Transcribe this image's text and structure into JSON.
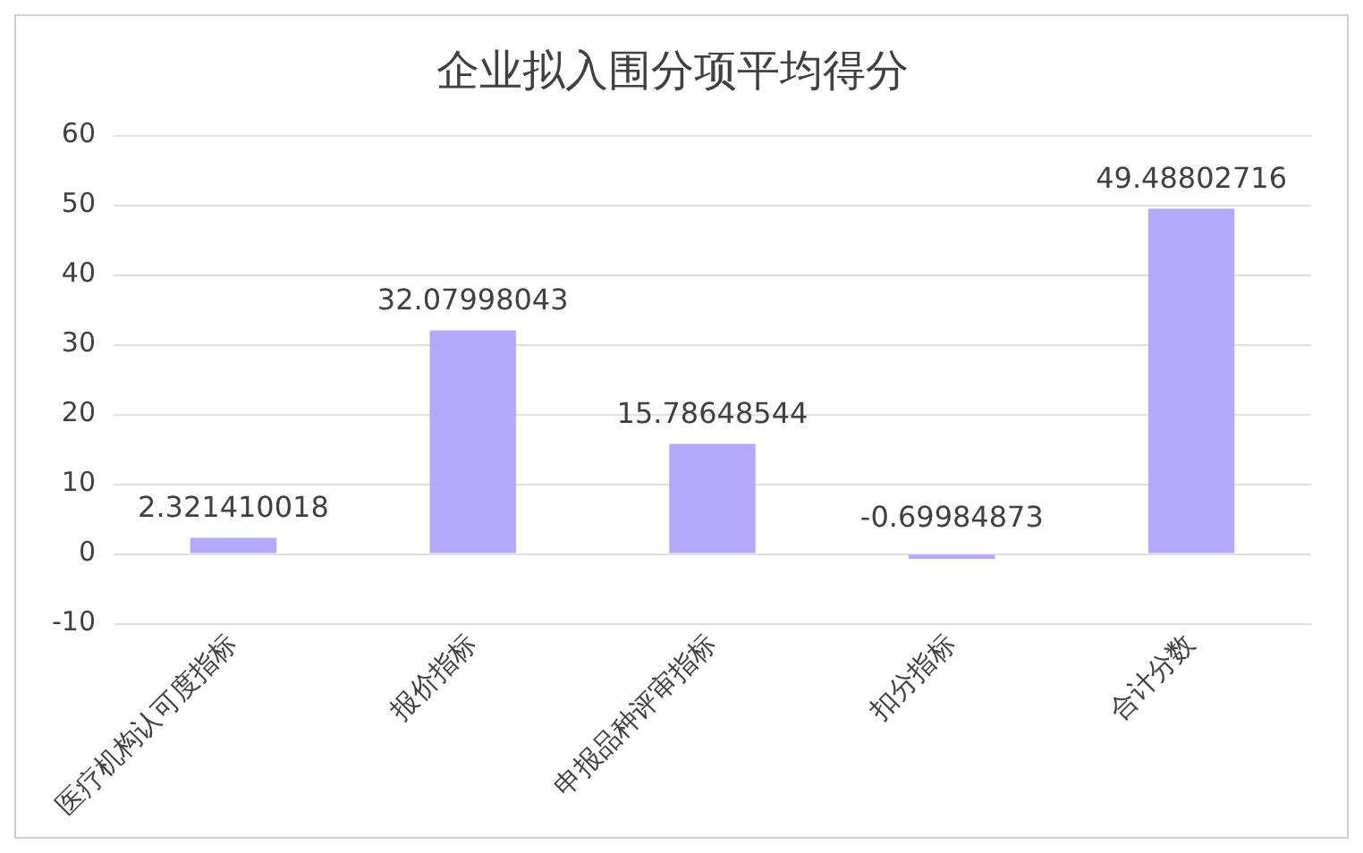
{
  "chart_data": {
    "type": "bar",
    "title": "企业拟入围分项平均得分",
    "categories": [
      "医疗机构认可度指标",
      "报价指标",
      "申报品种评审指标",
      "扣分指标",
      "合计分数"
    ],
    "values": [
      2.321410018,
      32.07998043,
      15.78648544,
      -0.69984873,
      49.48802716
    ],
    "color": "#b3a8fb",
    "ylim": [
      -10,
      60
    ],
    "yticks": [
      -10,
      0,
      10,
      20,
      30,
      40,
      50,
      60
    ],
    "grid": "y",
    "data_labels": true
  }
}
